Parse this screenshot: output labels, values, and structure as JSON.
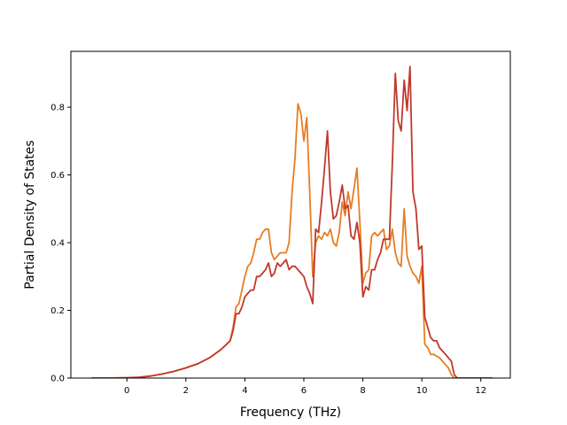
{
  "chart_data": {
    "type": "line",
    "xlabel": "Frequency (THz)",
    "ylabel": "Partial Density of States",
    "xlim": [
      -1.9,
      13
    ],
    "ylim": [
      0,
      0.965
    ],
    "xticks": [
      0,
      2,
      4,
      6,
      8,
      10,
      12
    ],
    "xtick_labels": [
      "0",
      "2",
      "4",
      "6",
      "8",
      "10",
      "12"
    ],
    "yticks": [
      0,
      0.2,
      0.4,
      0.6,
      0.8
    ],
    "ytick_labels": [
      "0.0",
      "0.2",
      "0.4",
      "0.6",
      "0.8"
    ],
    "grid": false,
    "legend": "none",
    "series": [
      {
        "color": "#e67e22",
        "x": [
          -1.2,
          -0.6,
          0,
          0.4,
          0.8,
          1.2,
          1.6,
          2.0,
          2.4,
          2.8,
          3.2,
          3.5,
          3.6,
          3.7,
          3.8,
          3.9,
          4.0,
          4.1,
          4.2,
          4.3,
          4.4,
          4.5,
          4.6,
          4.7,
          4.8,
          4.9,
          5.0,
          5.1,
          5.2,
          5.3,
          5.4,
          5.5,
          5.6,
          5.7,
          5.8,
          5.9,
          6.0,
          6.1,
          6.2,
          6.3,
          6.4,
          6.5,
          6.6,
          6.7,
          6.8,
          6.9,
          7.0,
          7.1,
          7.2,
          7.3,
          7.4,
          7.5,
          7.6,
          7.7,
          7.8,
          7.9,
          8.0,
          8.1,
          8.2,
          8.3,
          8.4,
          8.5,
          8.6,
          8.7,
          8.8,
          8.9,
          9.0,
          9.1,
          9.2,
          9.3,
          9.4,
          9.5,
          9.6,
          9.7,
          9.8,
          9.9,
          10.0,
          10.1,
          10.2,
          10.3,
          10.4,
          10.5,
          10.6,
          10.7,
          10.8,
          10.9,
          11.0,
          11.1,
          11.2,
          11.3,
          11.4,
          12.4
        ],
        "y": [
          0,
          0,
          0.001,
          0.002,
          0.006,
          0.012,
          0.02,
          0.03,
          0.042,
          0.06,
          0.085,
          0.11,
          0.15,
          0.21,
          0.22,
          0.26,
          0.3,
          0.33,
          0.34,
          0.37,
          0.41,
          0.41,
          0.43,
          0.44,
          0.44,
          0.37,
          0.35,
          0.36,
          0.37,
          0.37,
          0.37,
          0.4,
          0.55,
          0.65,
          0.81,
          0.78,
          0.7,
          0.77,
          0.55,
          0.3,
          0.4,
          0.42,
          0.41,
          0.43,
          0.42,
          0.44,
          0.4,
          0.39,
          0.43,
          0.52,
          0.48,
          0.55,
          0.5,
          0.56,
          0.62,
          0.46,
          0.28,
          0.31,
          0.32,
          0.42,
          0.43,
          0.42,
          0.43,
          0.44,
          0.38,
          0.39,
          0.44,
          0.37,
          0.34,
          0.33,
          0.5,
          0.36,
          0.33,
          0.31,
          0.3,
          0.28,
          0.33,
          0.1,
          0.09,
          0.07,
          0.07,
          0.065,
          0.06,
          0.05,
          0.04,
          0.03,
          0.01,
          0,
          0,
          0,
          0,
          0
        ]
      },
      {
        "color": "#c0392b",
        "x": [
          -1.2,
          -0.6,
          0,
          0.4,
          0.8,
          1.2,
          1.6,
          2.0,
          2.4,
          2.8,
          3.2,
          3.5,
          3.6,
          3.7,
          3.8,
          3.9,
          4.0,
          4.1,
          4.2,
          4.3,
          4.4,
          4.5,
          4.6,
          4.7,
          4.8,
          4.9,
          5.0,
          5.1,
          5.2,
          5.3,
          5.4,
          5.5,
          5.6,
          5.7,
          5.8,
          5.9,
          6.0,
          6.1,
          6.2,
          6.3,
          6.4,
          6.5,
          6.6,
          6.7,
          6.8,
          6.9,
          7.0,
          7.1,
          7.2,
          7.3,
          7.4,
          7.5,
          7.6,
          7.7,
          7.8,
          7.9,
          8.0,
          8.1,
          8.2,
          8.3,
          8.4,
          8.5,
          8.6,
          8.7,
          8.8,
          8.9,
          9.0,
          9.1,
          9.2,
          9.3,
          9.4,
          9.5,
          9.6,
          9.7,
          9.8,
          9.9,
          10.0,
          10.1,
          10.2,
          10.3,
          10.4,
          10.5,
          10.6,
          10.7,
          10.8,
          10.9,
          11.0,
          11.1,
          11.2,
          11.3,
          11.4,
          12.4
        ],
        "y": [
          0,
          0,
          0.001,
          0.002,
          0.006,
          0.012,
          0.02,
          0.03,
          0.042,
          0.06,
          0.085,
          0.11,
          0.14,
          0.19,
          0.19,
          0.21,
          0.24,
          0.25,
          0.26,
          0.26,
          0.3,
          0.3,
          0.31,
          0.32,
          0.34,
          0.3,
          0.31,
          0.34,
          0.33,
          0.34,
          0.35,
          0.32,
          0.33,
          0.33,
          0.32,
          0.31,
          0.3,
          0.27,
          0.25,
          0.22,
          0.44,
          0.43,
          0.52,
          0.62,
          0.73,
          0.55,
          0.47,
          0.48,
          0.52,
          0.57,
          0.5,
          0.51,
          0.42,
          0.41,
          0.46,
          0.4,
          0.24,
          0.27,
          0.26,
          0.32,
          0.32,
          0.35,
          0.37,
          0.41,
          0.41,
          0.41,
          0.63,
          0.9,
          0.76,
          0.73,
          0.88,
          0.79,
          0.92,
          0.55,
          0.5,
          0.38,
          0.39,
          0.18,
          0.15,
          0.12,
          0.11,
          0.11,
          0.09,
          0.08,
          0.07,
          0.06,
          0.05,
          0.01,
          0,
          0,
          0,
          0
        ]
      }
    ]
  }
}
